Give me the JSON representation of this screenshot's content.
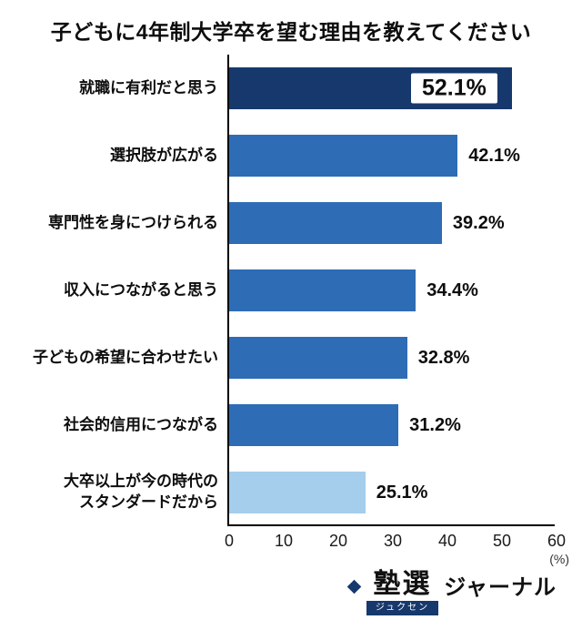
{
  "title": "子どもに4年制大学卒を望む理由を教えてください",
  "chart_data": {
    "type": "bar",
    "orientation": "horizontal",
    "title": "子どもに4年制大学卒を望む理由を教えてください",
    "categories": [
      "就職に有利だと思う",
      "選択肢が広がる",
      "専門性を身につけられる",
      "収入につながると思う",
      "子どもの希望に合わせたい",
      "社会的信用につながる",
      "大卒以上が今の時代の\nスタンダードだから"
    ],
    "values": [
      52.1,
      42.1,
      39.2,
      34.4,
      32.8,
      31.2,
      25.1
    ],
    "value_labels": [
      "52.1%",
      "42.1%",
      "39.2%",
      "34.4%",
      "32.8%",
      "31.2%",
      "25.1%"
    ],
    "bar_colors": [
      "#17386c",
      "#2e6cb5",
      "#2e6cb5",
      "#2e6cb5",
      "#2e6cb5",
      "#2e6cb5",
      "#a5cdec"
    ],
    "highlight_index": 0,
    "xlim": [
      0,
      60
    ],
    "xticks": [
      0,
      10,
      20,
      30,
      40,
      50,
      60
    ],
    "x_unit": "(%)",
    "grid": false,
    "legend": false
  },
  "footer": {
    "logo_main": "塾選",
    "logo_reading": "ジュクセン",
    "logo_suffix": "ジャーナル"
  }
}
